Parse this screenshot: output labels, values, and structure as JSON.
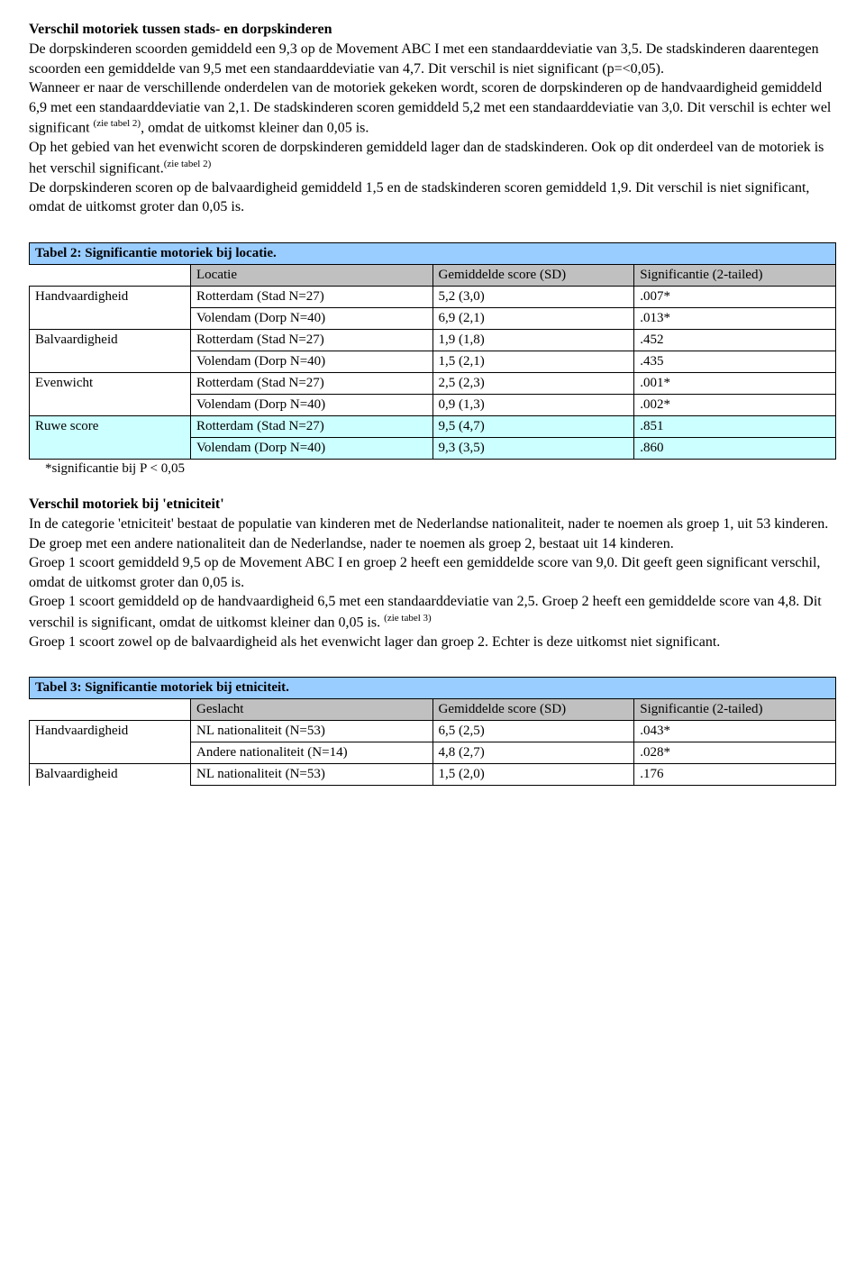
{
  "section1": {
    "title": "Verschil motoriek tussen stads- en dorpskinderen",
    "text_html": "De dorpskinderen scoorden gemiddeld een 9,3 op de Movement ABC I met een standaarddeviatie van 3,5. De stadskinderen daarentegen scoorden een gemiddelde van 9,5 met een standaarddeviatie van 4,7. Dit verschil is niet significant (p=<0,05).<br>Wanneer er naar de verschillende onderdelen van de motoriek gekeken wordt, scoren de dorpskinderen op de handvaardigheid gemiddeld 6,9 met een standaarddeviatie van 2,1. De stadskinderen scoren gemiddeld 5,2 met een standaarddeviatie van 3,0. Dit verschil is echter wel significant <span class='sup'>(zie tabel 2)</span>, omdat de uitkomst kleiner dan 0,05 is.<br>Op het gebied van het evenwicht scoren de dorpskinderen gemiddeld lager dan de stadskinderen. Ook op dit onderdeel van de motoriek is het verschil significant.<span class='sup'>(zie tabel 2)</span><br>De dorpskinderen scoren op de balvaardigheid gemiddeld 1,5 en de stadskinderen scoren gemiddeld 1,9. Dit verschil is niet significant, omdat de uitkomst groter dan 0,05 is."
  },
  "table2": {
    "caption": "Tabel 2: Significantie motoriek bij locatie.",
    "headers": [
      "",
      "Locatie",
      "Gemiddelde score (SD)",
      "Significantie (2-tailed)"
    ],
    "col_widths": [
      "20%",
      "30%",
      "25%",
      "25%"
    ],
    "rows": [
      {
        "cat": "Handvaardigheid",
        "loc": "Rotterdam (Stad N=27)",
        "score": "5,2 (3,0)",
        "sig": ".007*",
        "hl": false,
        "first": true
      },
      {
        "cat": "",
        "loc": "Volendam (Dorp N=40)",
        "score": "6,9 (2,1)",
        "sig": ".013*",
        "hl": false,
        "first": false
      },
      {
        "cat": "Balvaardigheid",
        "loc": "Rotterdam (Stad N=27)",
        "score": "1,9 (1,8)",
        "sig": ".452",
        "hl": false,
        "first": true
      },
      {
        "cat": "",
        "loc": "Volendam (Dorp N=40)",
        "score": "1,5 (2,1)",
        "sig": ".435",
        "hl": false,
        "first": false
      },
      {
        "cat": "Evenwicht",
        "loc": "Rotterdam (Stad N=27)",
        "score": "2,5 (2,3)",
        "sig": ".001*",
        "hl": false,
        "first": true
      },
      {
        "cat": "",
        "loc": "Volendam (Dorp N=40)",
        "score": "0,9 (1,3)",
        "sig": ".002*",
        "hl": false,
        "first": false
      },
      {
        "cat": "Ruwe score",
        "loc": "Rotterdam (Stad N=27)",
        "score": "9,5 (4,7)",
        "sig": ".851",
        "hl": true,
        "first": true
      },
      {
        "cat": "",
        "loc": "Volendam (Dorp N=40)",
        "score": "9,3 (3,5)",
        "sig": ".860",
        "hl": true,
        "first": false
      }
    ],
    "footnote": "*significantie bij P < 0,05"
  },
  "section2": {
    "title": "Verschil motoriek bij 'etniciteit'",
    "text_html": "In de categorie 'etniciteit' bestaat de populatie van kinderen met de Nederlandse nationaliteit, nader te noemen als groep 1, uit 53 kinderen. De groep met een andere nationaliteit dan de Nederlandse, nader te noemen als groep 2, bestaat uit 14 kinderen.<br>Groep 1 scoort gemiddeld 9,5 op de Movement ABC I en groep 2 heeft een gemiddelde score van 9,0. Dit geeft geen significant verschil, omdat de uitkomst groter dan 0,05 is.<br>Groep 1 scoort gemiddeld op de handvaardigheid 6,5 met een standaarddeviatie van 2,5. Groep 2 heeft een gemiddelde score van 4,8. Dit verschil is significant, omdat de uitkomst kleiner dan 0,05 is. <span class='sup'>(zie tabel 3)</span><br>Groep 1 scoort zowel op de balvaardigheid als het evenwicht lager dan groep 2. Echter is deze uitkomst niet significant."
  },
  "table3": {
    "caption": "Tabel 3: Significantie motoriek bij etniciteit.",
    "headers": [
      "",
      "Geslacht",
      "Gemiddelde score (SD)",
      "Significantie (2-tailed)"
    ],
    "col_widths": [
      "20%",
      "30%",
      "25%",
      "25%"
    ],
    "rows": [
      {
        "cat": "Handvaardigheid",
        "loc": "NL nationaliteit (N=53)",
        "score": "6,5 (2,5)",
        "sig": ".043*",
        "hl": false,
        "first": true
      },
      {
        "cat": "",
        "loc": "Andere nationaliteit (N=14)",
        "score": "4,8 (2,7)",
        "sig": ".028*",
        "hl": false,
        "first": false
      },
      {
        "cat": "Balvaardigheid",
        "loc": "NL nationaliteit (N=53)",
        "score": "1,5 (2,0)",
        "sig": ".176",
        "hl": false,
        "first": true
      }
    ]
  }
}
